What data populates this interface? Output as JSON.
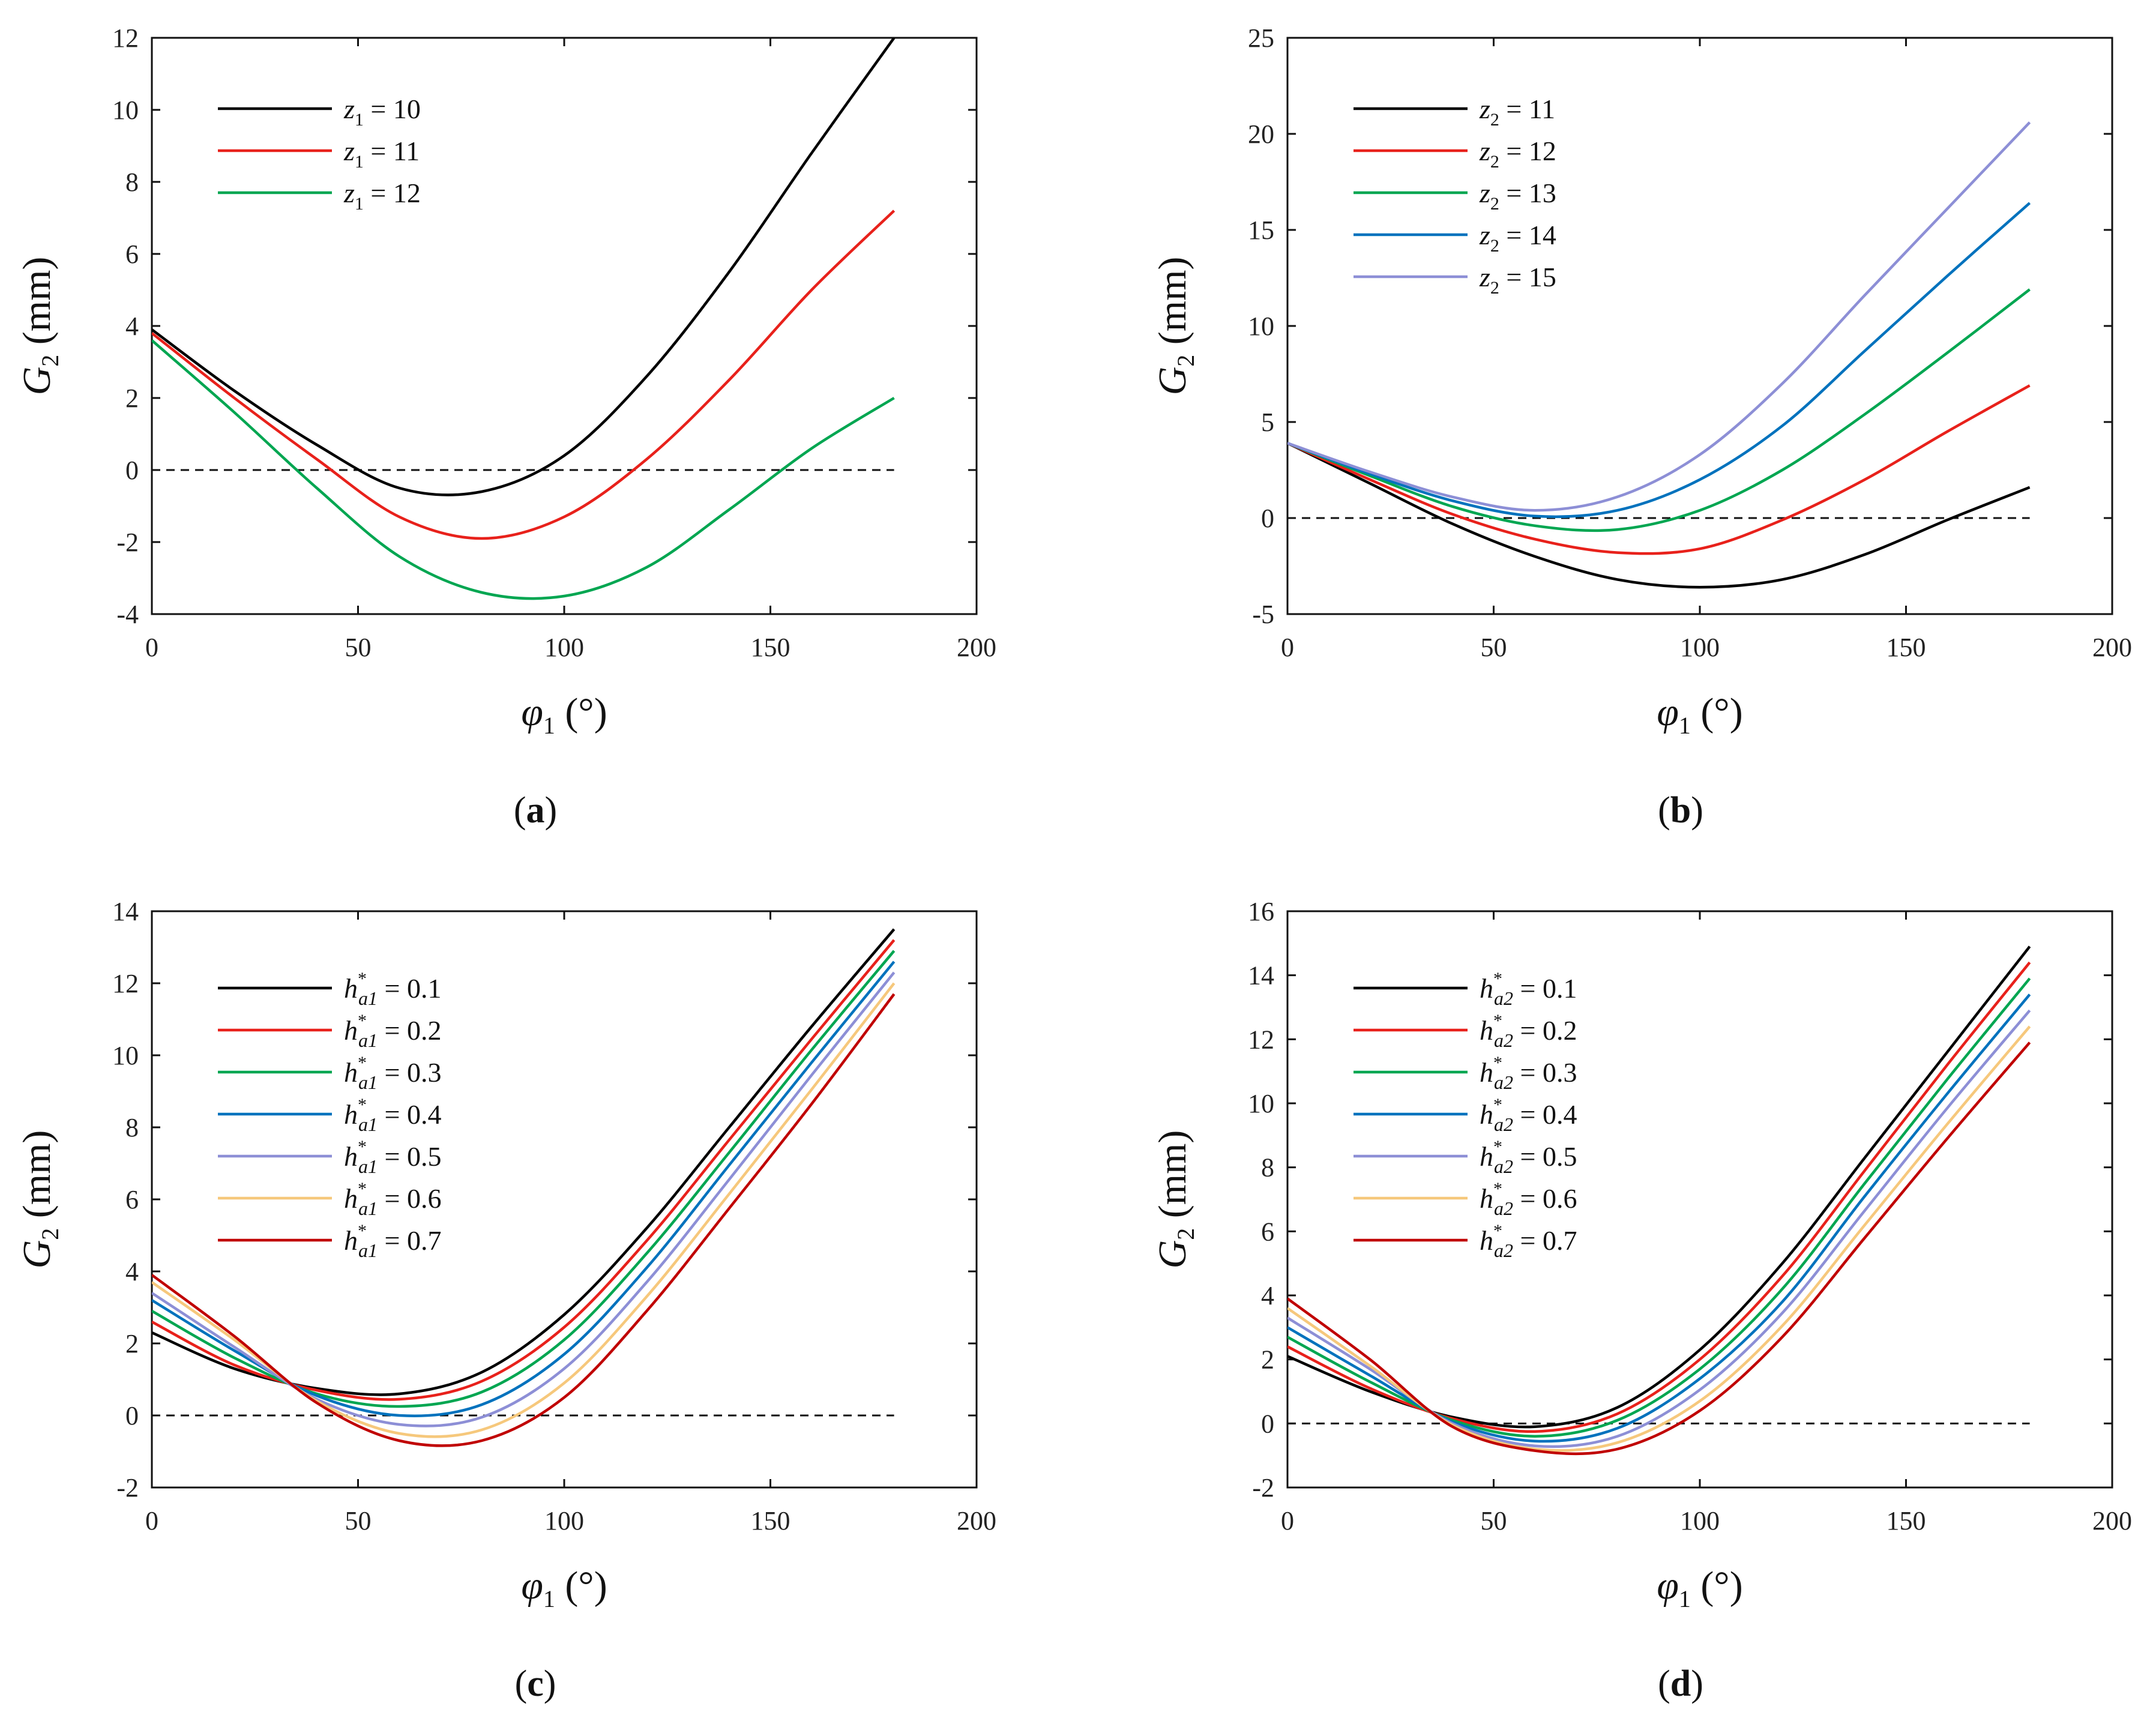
{
  "figure": {
    "captions": [
      "a",
      "b",
      "c",
      "d"
    ]
  },
  "chart_data": [
    {
      "type": "line",
      "panel": "a",
      "xlabel": "φ1 (°)",
      "ylabel": "G2 (mm)",
      "xlabel_parts": {
        "sym": "φ",
        "sub": "1",
        "unit": "(°)"
      },
      "ylabel_parts": {
        "sym": "G",
        "sub": "2",
        "unit": "(mm)"
      },
      "xlim": [
        0,
        200
      ],
      "ylim": [
        -4,
        12
      ],
      "xticks": [
        0,
        50,
        100,
        150,
        200
      ],
      "yticks": [
        -4,
        -2,
        0,
        2,
        4,
        6,
        8,
        10,
        12
      ],
      "xtick_labels": [
        "0",
        "50",
        "100",
        "150",
        "200"
      ],
      "ytick_labels": [
        "-4",
        "-2",
        "0",
        "2",
        "4",
        "6",
        "8",
        "10",
        "12"
      ],
      "reference_line": {
        "y": 0,
        "x_range": [
          0,
          180
        ],
        "style": "dashed"
      },
      "legend_position": "top-left",
      "x": [
        0,
        20,
        40,
        60,
        80,
        100,
        120,
        140,
        160,
        180
      ],
      "series": [
        {
          "name": "z1 = 10",
          "sym": "z",
          "sub": "1",
          "value": "10",
          "color": "#000000",
          "values": [
            3.9,
            2.2,
            0.7,
            -0.5,
            -0.6,
            0.4,
            2.6,
            5.5,
            8.8,
            12.0
          ]
        },
        {
          "name": "z1 = 11",
          "sym": "z",
          "sub": "1",
          "value": "11",
          "color": "#e8211b",
          "values": [
            3.8,
            2.0,
            0.3,
            -1.3,
            -1.9,
            -1.3,
            0.3,
            2.5,
            5.0,
            7.2
          ]
        },
        {
          "name": "z1 = 12",
          "sym": "z",
          "sub": "1",
          "value": "12",
          "color": "#00a651",
          "values": [
            3.6,
            1.6,
            -0.5,
            -2.4,
            -3.4,
            -3.5,
            -2.7,
            -1.1,
            0.6,
            2.0
          ]
        }
      ]
    },
    {
      "type": "line",
      "panel": "b",
      "xlabel": "φ1 (°)",
      "ylabel": "G2 (mm)",
      "xlabel_parts": {
        "sym": "φ",
        "sub": "1",
        "unit": "(°)"
      },
      "ylabel_parts": {
        "sym": "G",
        "sub": "2",
        "unit": "(mm)"
      },
      "xlim": [
        0,
        200
      ],
      "ylim": [
        -5,
        25
      ],
      "xticks": [
        0,
        50,
        100,
        150,
        200
      ],
      "yticks": [
        -5,
        0,
        5,
        10,
        15,
        20,
        25
      ],
      "xtick_labels": [
        "0",
        "50",
        "100",
        "150",
        "200"
      ],
      "ytick_labels": [
        "-5",
        "0",
        "5",
        "10",
        "15",
        "20",
        "25"
      ],
      "reference_line": {
        "y": 0,
        "x_range": [
          0,
          180
        ],
        "style": "dashed"
      },
      "legend_position": "top-left",
      "x": [
        0,
        20,
        40,
        60,
        80,
        100,
        120,
        140,
        160,
        180
      ],
      "series": [
        {
          "name": "z2 = 11",
          "sym": "z",
          "sub": "2",
          "value": "11",
          "color": "#000000",
          "values": [
            3.9,
            1.8,
            -0.3,
            -2.0,
            -3.2,
            -3.6,
            -3.2,
            -1.9,
            -0.1,
            1.6
          ]
        },
        {
          "name": "z2 = 12",
          "sym": "z",
          "sub": "2",
          "value": "12",
          "color": "#e8211b",
          "values": [
            3.9,
            2.0,
            0.2,
            -1.1,
            -1.8,
            -1.6,
            -0.1,
            2.0,
            4.5,
            6.9
          ]
        },
        {
          "name": "z2 = 13",
          "sym": "z",
          "sub": "2",
          "value": "13",
          "color": "#00a651",
          "values": [
            3.9,
            2.2,
            0.6,
            -0.4,
            -0.6,
            0.4,
            2.5,
            5.4,
            8.6,
            11.9
          ]
        },
        {
          "name": "z2 = 14",
          "sym": "z",
          "sub": "2",
          "value": "14",
          "color": "#0072bd",
          "values": [
            3.9,
            2.3,
            0.9,
            0.1,
            0.4,
            2.0,
            4.8,
            8.7,
            12.6,
            16.4
          ]
        },
        {
          "name": "z2 = 15",
          "sym": "z",
          "sub": "2",
          "value": "15",
          "color": "#8d8fd6",
          "values": [
            3.9,
            2.4,
            1.1,
            0.4,
            1.1,
            3.3,
            7.0,
            11.6,
            16.1,
            20.6
          ]
        }
      ]
    },
    {
      "type": "line",
      "panel": "c",
      "xlabel": "φ1 (°)",
      "ylabel": "G2 (mm)",
      "xlabel_parts": {
        "sym": "φ",
        "sub": "1",
        "unit": "(°)"
      },
      "ylabel_parts": {
        "sym": "G",
        "sub": "2",
        "unit": "(mm)"
      },
      "xlim": [
        0,
        200
      ],
      "ylim": [
        -2,
        14
      ],
      "xticks": [
        0,
        50,
        100,
        150,
        200
      ],
      "yticks": [
        -2,
        0,
        2,
        4,
        6,
        8,
        10,
        12,
        14
      ],
      "xtick_labels": [
        "0",
        "50",
        "100",
        "150",
        "200"
      ],
      "ytick_labels": [
        "-2",
        "0",
        "2",
        "4",
        "6",
        "8",
        "10",
        "12",
        "14"
      ],
      "reference_line": {
        "y": 0,
        "x_range": [
          0,
          180
        ],
        "style": "dashed"
      },
      "legend_position": "top-left",
      "x": [
        0,
        20,
        40,
        60,
        80,
        100,
        120,
        140,
        160,
        180
      ],
      "series": [
        {
          "name": "h*a1 = 0.1",
          "sym": "h",
          "sup": "*",
          "sub": "a1",
          "value": "0.1",
          "color": "#000000",
          "values": [
            2.3,
            1.3,
            0.75,
            0.6,
            1.2,
            2.8,
            5.2,
            8.0,
            10.8,
            13.5
          ]
        },
        {
          "name": "h*a1 = 0.2",
          "sym": "h",
          "sup": "*",
          "sub": "a1",
          "value": "0.2",
          "color": "#e8211b",
          "values": [
            2.6,
            1.4,
            0.7,
            0.45,
            0.95,
            2.45,
            4.85,
            7.65,
            10.45,
            13.2
          ]
        },
        {
          "name": "h*a1 = 0.3",
          "sym": "h",
          "sup": "*",
          "sub": "a1",
          "value": "0.3",
          "color": "#00a651",
          "values": [
            2.9,
            1.6,
            0.6,
            0.25,
            0.65,
            2.1,
            4.5,
            7.3,
            10.15,
            12.9
          ]
        },
        {
          "name": "h*a1 = 0.4",
          "sym": "h",
          "sup": "*",
          "sub": "a1",
          "value": "0.4",
          "color": "#0072bd",
          "values": [
            3.2,
            1.8,
            0.55,
            0.0,
            0.3,
            1.7,
            4.1,
            6.95,
            9.8,
            12.6
          ]
        },
        {
          "name": "h*a1 = 0.5",
          "sym": "h",
          "sup": "*",
          "sub": "a1",
          "value": "0.5",
          "color": "#8d8fd6",
          "values": [
            3.4,
            1.9,
            0.45,
            -0.25,
            -0.05,
            1.3,
            3.7,
            6.55,
            9.45,
            12.3
          ]
        },
        {
          "name": "h*a1 = 0.6",
          "sym": "h",
          "sup": "*",
          "sub": "a1",
          "value": "0.6",
          "color": "#f6c87c",
          "values": [
            3.7,
            2.1,
            0.4,
            -0.5,
            -0.4,
            0.9,
            3.3,
            6.15,
            9.05,
            12.0
          ]
        },
        {
          "name": "h*a1 = 0.7",
          "sym": "h",
          "sup": "*",
          "sub": "a1",
          "value": "0.7",
          "color": "#c00000",
          "values": [
            3.9,
            2.2,
            0.35,
            -0.7,
            -0.7,
            0.5,
            2.9,
            5.75,
            8.65,
            11.7
          ]
        }
      ]
    },
    {
      "type": "line",
      "panel": "d",
      "xlabel": "φ1 (°)",
      "ylabel": "G2 (mm)",
      "xlabel_parts": {
        "sym": "φ",
        "sub": "1",
        "unit": "(°)"
      },
      "ylabel_parts": {
        "sym": "G",
        "sub": "2",
        "unit": "(mm)"
      },
      "xlim": [
        0,
        200
      ],
      "ylim": [
        -2,
        16
      ],
      "xticks": [
        0,
        50,
        100,
        150,
        200
      ],
      "yticks": [
        -2,
        0,
        2,
        4,
        6,
        8,
        10,
        12,
        14,
        16
      ],
      "xtick_labels": [
        "0",
        "50",
        "100",
        "150",
        "200"
      ],
      "ytick_labels": [
        "-2",
        "0",
        "2",
        "4",
        "6",
        "8",
        "10",
        "12",
        "14",
        "16"
      ],
      "reference_line": {
        "y": 0,
        "x_range": [
          0,
          180
        ],
        "style": "dashed"
      },
      "legend_position": "top-left",
      "x": [
        0,
        20,
        40,
        60,
        80,
        100,
        120,
        140,
        160,
        180
      ],
      "series": [
        {
          "name": "h*a2 = 0.1",
          "sym": "h",
          "sup": "*",
          "sub": "a2",
          "value": "0.1",
          "color": "#000000",
          "values": [
            2.1,
            1.0,
            0.2,
            -0.1,
            0.5,
            2.3,
            5.0,
            8.3,
            11.6,
            14.9
          ]
        },
        {
          "name": "h*a2 = 0.2",
          "sym": "h",
          "sup": "*",
          "sub": "a2",
          "value": "0.2",
          "color": "#e8211b",
          "values": [
            2.4,
            1.1,
            0.15,
            -0.25,
            0.3,
            2.0,
            4.6,
            7.9,
            11.2,
            14.4
          ]
        },
        {
          "name": "h*a2 = 0.3",
          "sym": "h",
          "sup": "*",
          "sub": "a2",
          "value": "0.3",
          "color": "#00a651",
          "values": [
            2.7,
            1.3,
            0.1,
            -0.4,
            0.1,
            1.7,
            4.2,
            7.5,
            10.75,
            13.9
          ]
        },
        {
          "name": "h*a2 = 0.4",
          "sym": "h",
          "sup": "*",
          "sub": "a2",
          "value": "0.4",
          "color": "#0072bd",
          "values": [
            3.0,
            1.5,
            0.05,
            -0.55,
            -0.15,
            1.4,
            3.8,
            7.1,
            10.3,
            13.4
          ]
        },
        {
          "name": "h*a2 = 0.5",
          "sym": "h",
          "sup": "*",
          "sub": "a2",
          "value": "0.5",
          "color": "#8d8fd6",
          "values": [
            3.3,
            1.7,
            0.0,
            -0.7,
            -0.4,
            1.05,
            3.45,
            6.65,
            9.85,
            12.9
          ]
        },
        {
          "name": "h*a2 = 0.6",
          "sym": "h",
          "sup": "*",
          "sub": "a2",
          "value": "0.6",
          "color": "#f6c87c",
          "values": [
            3.6,
            1.8,
            -0.05,
            -0.8,
            -0.6,
            0.7,
            3.05,
            6.2,
            9.35,
            12.4
          ]
        },
        {
          "name": "h*a2 = 0.7",
          "sym": "h",
          "sup": "*",
          "sub": "a2",
          "value": "0.7",
          "color": "#c00000",
          "values": [
            3.9,
            2.0,
            -0.1,
            -0.85,
            -0.8,
            0.4,
            2.7,
            5.8,
            8.9,
            11.9
          ]
        }
      ]
    }
  ]
}
